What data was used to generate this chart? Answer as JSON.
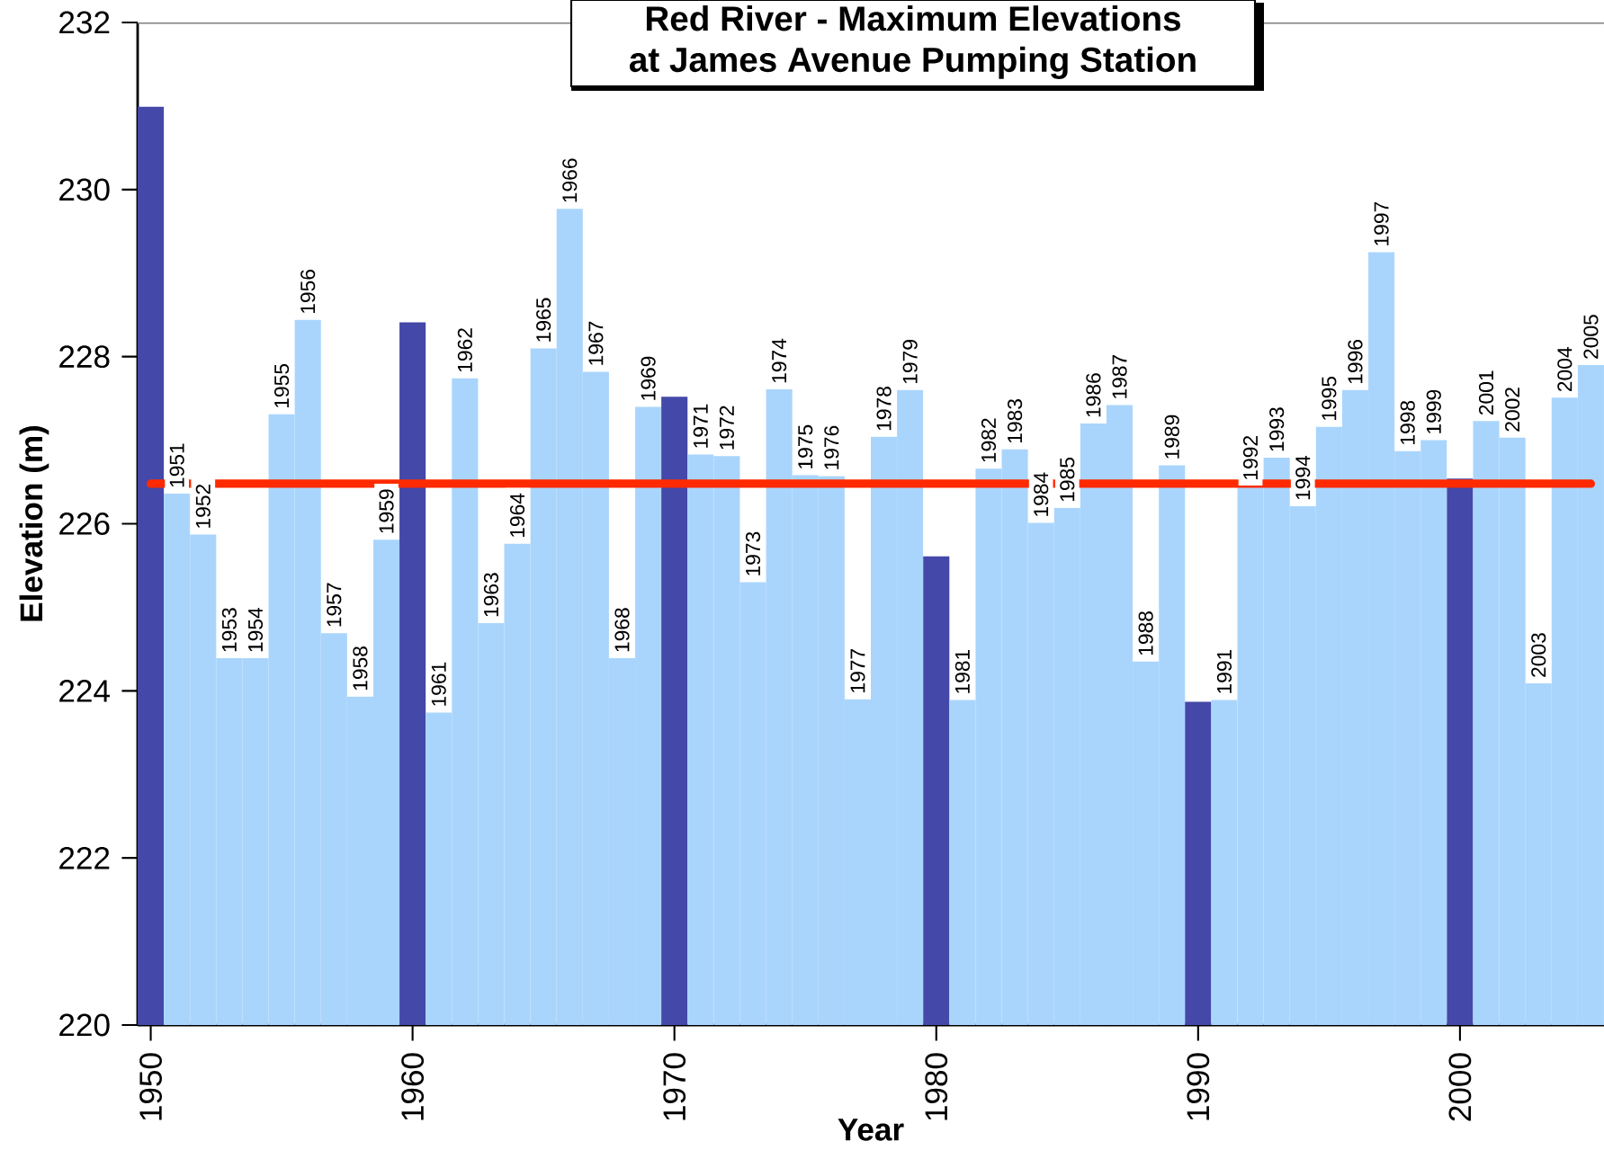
{
  "chart_data": {
    "type": "bar",
    "title": "Red River - Maximum Elevations",
    "subtitle": "at James Avenue Pumping Station",
    "xlabel": "Year",
    "ylabel": "Elevation (m)",
    "x": [
      1950,
      1951,
      1952,
      1953,
      1954,
      1955,
      1956,
      1957,
      1958,
      1959,
      1960,
      1961,
      1962,
      1963,
      1964,
      1965,
      1966,
      1967,
      1968,
      1969,
      1970,
      1971,
      1972,
      1973,
      1974,
      1975,
      1976,
      1977,
      1978,
      1979,
      1980,
      1981,
      1982,
      1983,
      1984,
      1985,
      1986,
      1987,
      1988,
      1989,
      1990,
      1991,
      1992,
      1993,
      1994,
      1995,
      1996,
      1997,
      1998,
      1999,
      2000,
      2001,
      2002,
      2003,
      2004,
      2005
    ],
    "values": [
      230.99,
      226.36,
      225.87,
      224.39,
      224.39,
      227.31,
      228.44,
      224.69,
      223.93,
      225.81,
      228.41,
      223.74,
      227.74,
      224.81,
      225.76,
      228.1,
      229.77,
      227.82,
      224.39,
      227.4,
      227.52,
      226.83,
      226.81,
      225.3,
      227.61,
      226.58,
      226.57,
      223.9,
      227.04,
      227.6,
      225.61,
      223.89,
      226.66,
      226.89,
      226.01,
      226.19,
      227.2,
      227.42,
      224.35,
      226.7,
      223.87,
      223.89,
      226.45,
      226.79,
      226.21,
      227.16,
      227.6,
      229.25,
      226.87,
      227.0,
      226.54,
      227.23,
      227.03,
      224.09,
      227.51,
      227.9
    ],
    "colors": [
      "#4448a8",
      "#a9d5fd",
      "#a9d5fd",
      "#a9d5fd",
      "#a9d5fd",
      "#a9d5fd",
      "#a9d5fd",
      "#a9d5fd",
      "#a9d5fd",
      "#a9d5fd",
      "#4448a8",
      "#a9d5fd",
      "#a9d5fd",
      "#a9d5fd",
      "#a9d5fd",
      "#a9d5fd",
      "#a9d5fd",
      "#a9d5fd",
      "#a9d5fd",
      "#a9d5fd",
      "#4448a8",
      "#a9d5fd",
      "#a9d5fd",
      "#a9d5fd",
      "#a9d5fd",
      "#a9d5fd",
      "#a9d5fd",
      "#a9d5fd",
      "#a9d5fd",
      "#a9d5fd",
      "#4448a8",
      "#a9d5fd",
      "#a9d5fd",
      "#a9d5fd",
      "#a9d5fd",
      "#a9d5fd",
      "#a9d5fd",
      "#a9d5fd",
      "#a9d5fd",
      "#a9d5fd",
      "#4448a8",
      "#a9d5fd",
      "#a9d5fd",
      "#a9d5fd",
      "#a9d5fd",
      "#a9d5fd",
      "#a9d5fd",
      "#a9d5fd",
      "#a9d5fd",
      "#a9d5fd",
      "#4448a8",
      "#a9d5fd",
      "#a9d5fd",
      "#a9d5fd",
      "#a9d5fd",
      "#a9d5fd"
    ],
    "annotations": [
      {
        "text": "1951",
        "x": 1951,
        "y": 226.36
      },
      {
        "text": "1952",
        "x": 1952,
        "y": 225.87
      },
      {
        "text": "1953",
        "x": 1953,
        "y": 224.39
      },
      {
        "text": "1954",
        "x": 1954,
        "y": 224.39
      },
      {
        "text": "1955",
        "x": 1955,
        "y": 227.31
      },
      {
        "text": "1956",
        "x": 1956,
        "y": 228.44
      },
      {
        "text": "1957",
        "x": 1957,
        "y": 224.69
      },
      {
        "text": "1958",
        "x": 1958,
        "y": 223.93
      },
      {
        "text": "1959",
        "x": 1959,
        "y": 225.81
      },
      {
        "text": "1961",
        "x": 1961,
        "y": 223.74
      },
      {
        "text": "1962",
        "x": 1962,
        "y": 227.74
      },
      {
        "text": "1963",
        "x": 1963,
        "y": 224.81
      },
      {
        "text": "1964",
        "x": 1964,
        "y": 225.76
      },
      {
        "text": "1965",
        "x": 1965,
        "y": 228.1
      },
      {
        "text": "1966",
        "x": 1966,
        "y": 229.77
      },
      {
        "text": "1967",
        "x": 1967,
        "y": 227.82
      },
      {
        "text": "1968",
        "x": 1968,
        "y": 224.39
      },
      {
        "text": "1969",
        "x": 1969,
        "y": 227.4
      },
      {
        "text": "1971",
        "x": 1971,
        "y": 226.83
      },
      {
        "text": "1972",
        "x": 1972,
        "y": 226.81
      },
      {
        "text": "1973",
        "x": 1973,
        "y": 225.3
      },
      {
        "text": "1974",
        "x": 1974,
        "y": 227.61
      },
      {
        "text": "1975",
        "x": 1975,
        "y": 226.58
      },
      {
        "text": "1976",
        "x": 1976,
        "y": 226.57
      },
      {
        "text": "1977",
        "x": 1977,
        "y": 223.9
      },
      {
        "text": "1978",
        "x": 1978,
        "y": 227.04
      },
      {
        "text": "1979",
        "x": 1979,
        "y": 227.6
      },
      {
        "text": "1981",
        "x": 1981,
        "y": 223.89
      },
      {
        "text": "1982",
        "x": 1982,
        "y": 226.66
      },
      {
        "text": "1983",
        "x": 1983,
        "y": 226.89
      },
      {
        "text": "1984",
        "x": 1984,
        "y": 226.01
      },
      {
        "text": "1985",
        "x": 1985,
        "y": 226.19
      },
      {
        "text": "1986",
        "x": 1986,
        "y": 227.2
      },
      {
        "text": "1987",
        "x": 1987,
        "y": 227.42
      },
      {
        "text": "1988",
        "x": 1988,
        "y": 224.35
      },
      {
        "text": "1989",
        "x": 1989,
        "y": 226.7
      },
      {
        "text": "1991",
        "x": 1991,
        "y": 223.89
      },
      {
        "text": "1992",
        "x": 1992,
        "y": 226.45
      },
      {
        "text": "1993",
        "x": 1993,
        "y": 226.79
      },
      {
        "text": "1994",
        "x": 1994,
        "y": 226.21
      },
      {
        "text": "1995",
        "x": 1995,
        "y": 227.16
      },
      {
        "text": "1996",
        "x": 1996,
        "y": 227.6
      },
      {
        "text": "1997",
        "x": 1997,
        "y": 229.25
      },
      {
        "text": "1998",
        "x": 1998,
        "y": 226.87
      },
      {
        "text": "1999",
        "x": 1999,
        "y": 227.0
      },
      {
        "text": "2001",
        "x": 2001,
        "y": 227.23
      },
      {
        "text": "2002",
        "x": 2002,
        "y": 227.03
      },
      {
        "text": "2003",
        "x": 2003,
        "y": 224.09
      },
      {
        "text": "2004",
        "x": 2004,
        "y": 227.51
      },
      {
        "text": "2005",
        "x": 2005,
        "y": 227.9
      }
    ],
    "xlim": [
      1949.5,
      2005.5
    ],
    "ylim": [
      220,
      232
    ],
    "xticks": [
      1950,
      1960,
      1970,
      1980,
      1990,
      2000
    ],
    "yticks": [
      220,
      222,
      224,
      226,
      228,
      230,
      232
    ],
    "ref_lines": [
      {
        "axis": "y",
        "value": 226.48,
        "color": "#ff2a00"
      }
    ]
  }
}
